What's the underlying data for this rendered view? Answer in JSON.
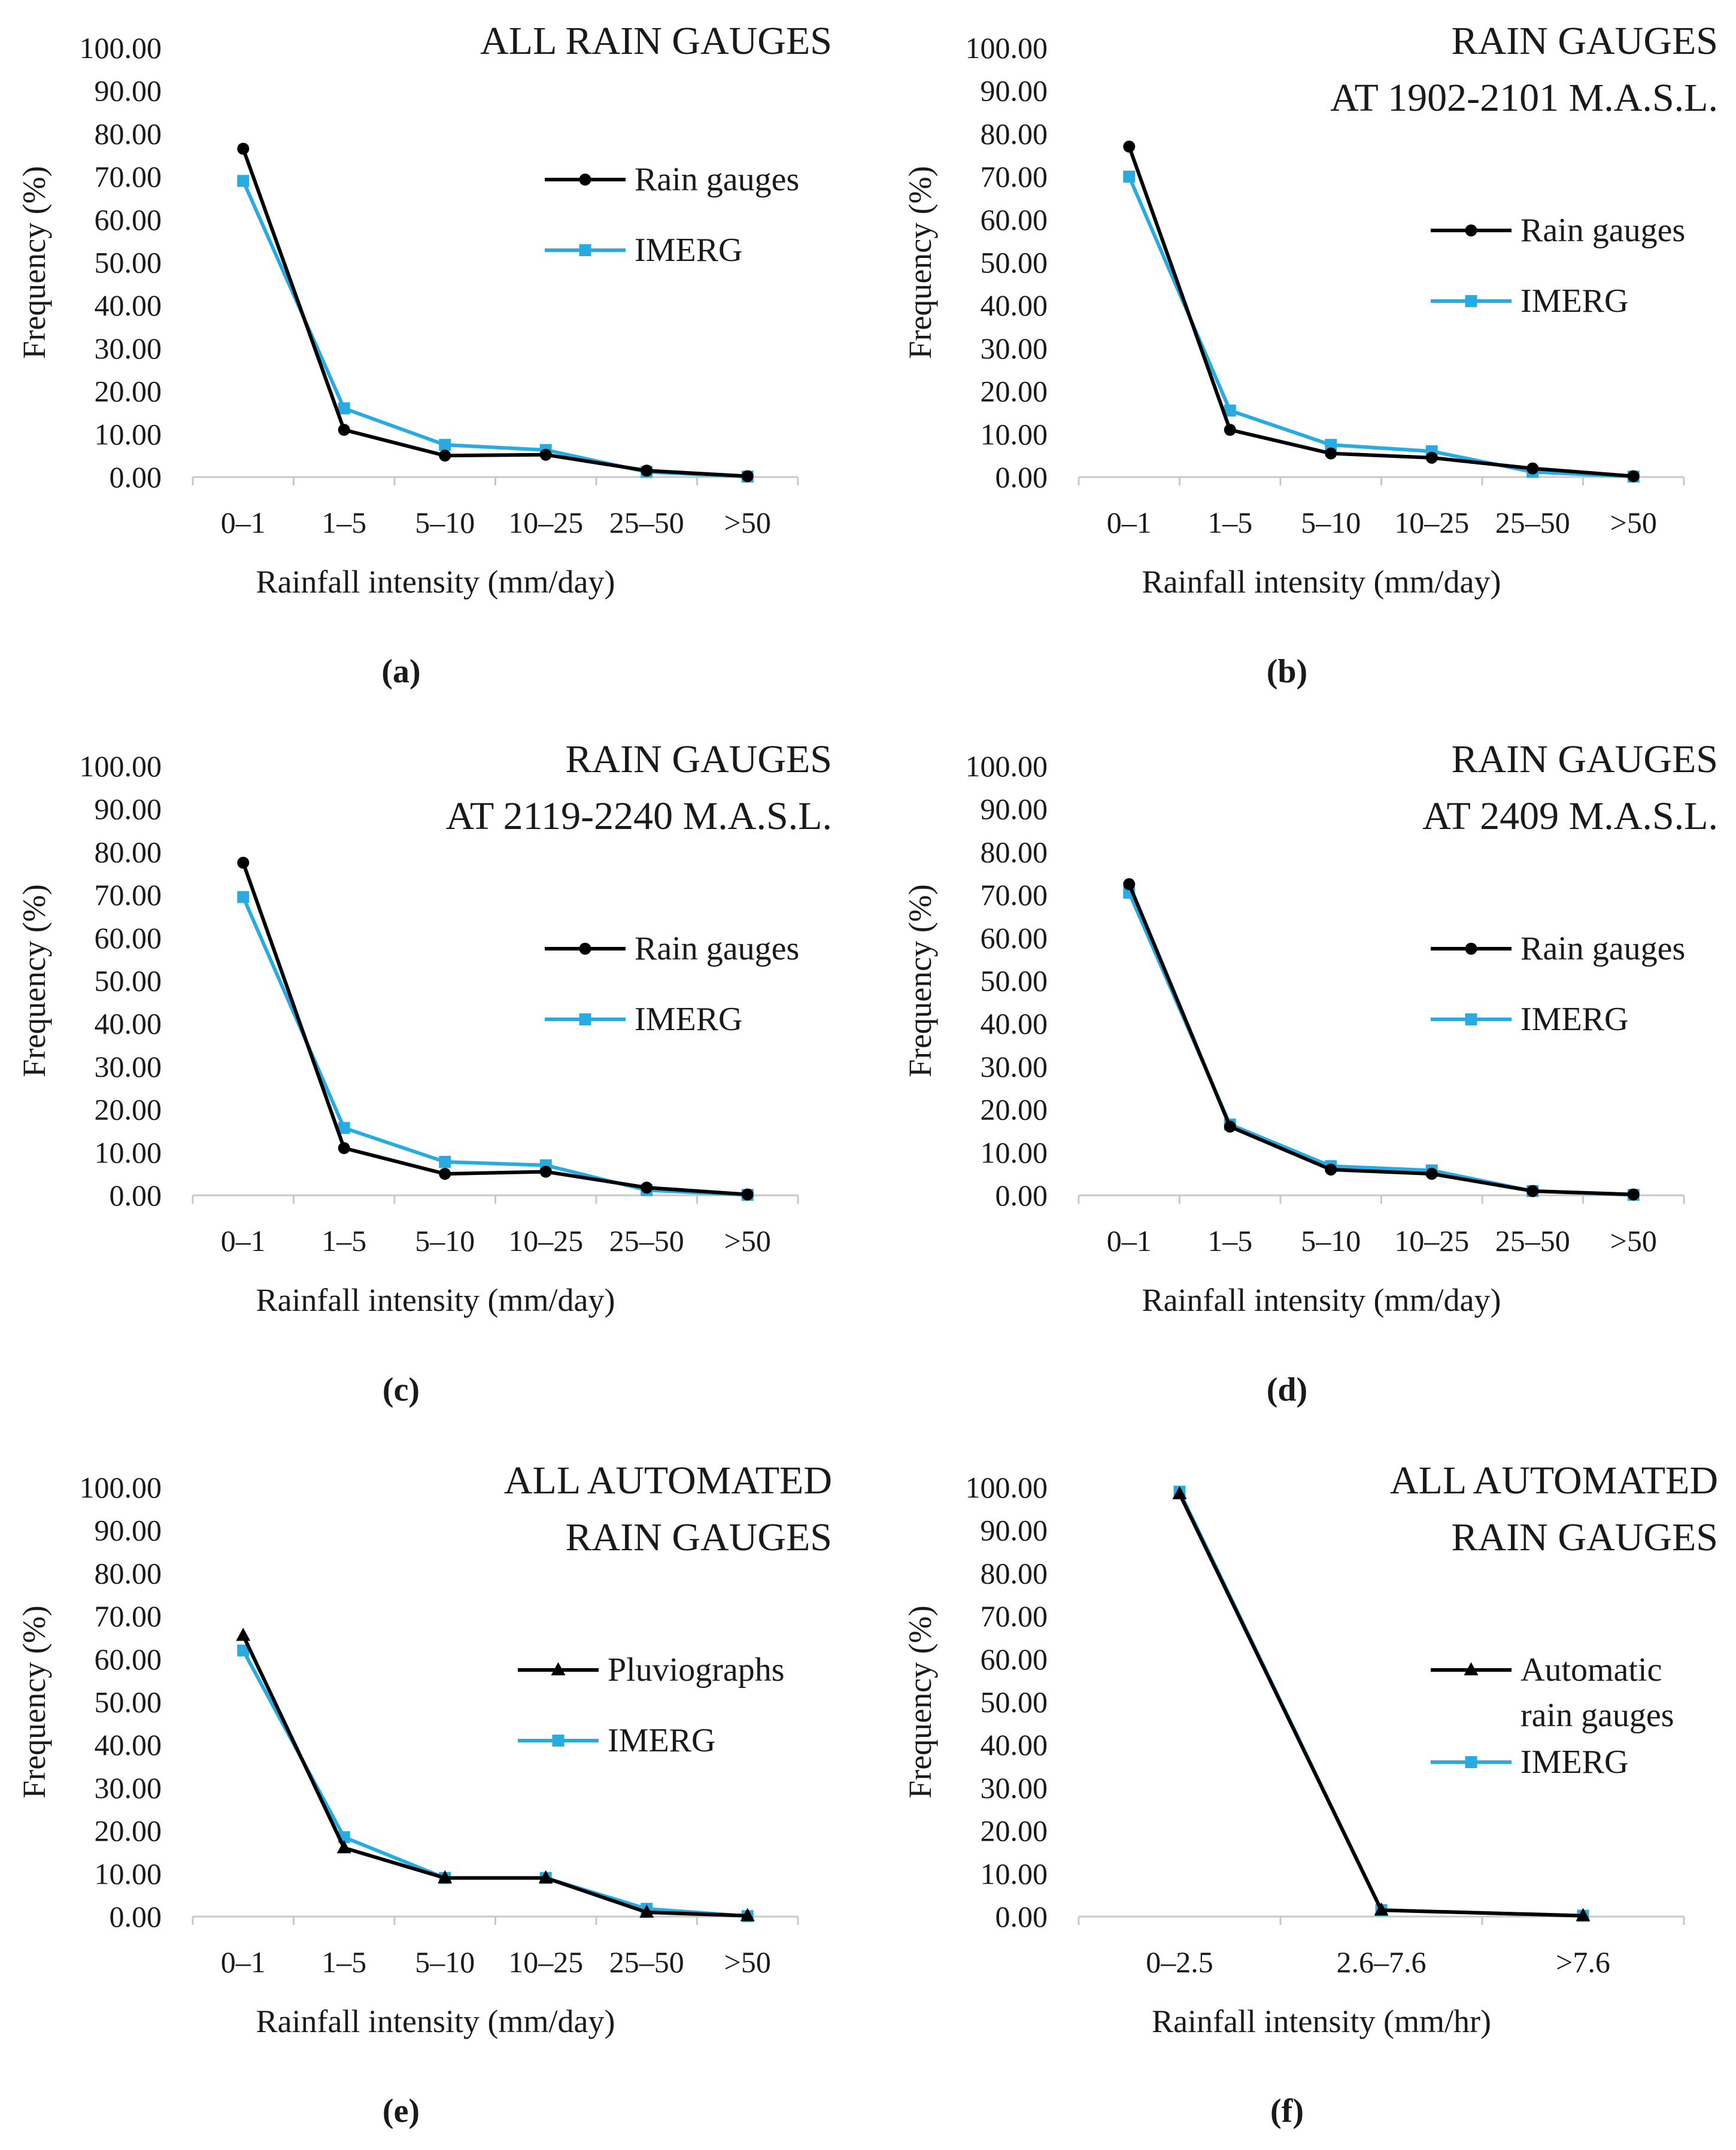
{
  "colors": {
    "rain_gauges": "#000000",
    "imerg": "#29abe2",
    "axis": "#c8c8c8",
    "text": "#1a1a1a"
  },
  "chart_data": [
    {
      "type": "line",
      "panel_label": "(a)",
      "title": [
        "ALL RAIN GAUGES"
      ],
      "xlabel": "Rainfall intensity (mm/day)",
      "ylabel": "Frequency (%)",
      "ylim": [
        0,
        100
      ],
      "yticks": [
        "0.00",
        "10.00",
        "20.00",
        "30.00",
        "40.00",
        "50.00",
        "60.00",
        "70.00",
        "80.00",
        "90.00",
        "100.00"
      ],
      "grid": false,
      "legend_position": "top-right",
      "categories": [
        "0–1",
        "1–5",
        "5–10",
        "10–25",
        "25–50",
        ">50"
      ],
      "series": [
        {
          "name": "Rain gauges",
          "marker": "circle",
          "color": "#000000",
          "values": [
            76.5,
            11.0,
            5.0,
            5.2,
            1.5,
            0.2
          ]
        },
        {
          "name": "IMERG",
          "marker": "square",
          "color": "#29abe2",
          "values": [
            69.0,
            16.0,
            7.5,
            6.3,
            1.2,
            0.1
          ]
        }
      ]
    },
    {
      "type": "line",
      "panel_label": "(b)",
      "title": [
        "RAIN GAUGES",
        "AT 1902-2101 M.A.S.L."
      ],
      "xlabel": "Rainfall intensity (mm/day)",
      "ylabel": "Frequency (%)",
      "ylim": [
        0,
        100
      ],
      "yticks": [
        "0.00",
        "10.00",
        "20.00",
        "30.00",
        "40.00",
        "50.00",
        "60.00",
        "70.00",
        "80.00",
        "90.00",
        "100.00"
      ],
      "grid": false,
      "legend_position": "top-right",
      "categories": [
        "0–1",
        "1–5",
        "5–10",
        "10–25",
        "25–50",
        ">50"
      ],
      "series": [
        {
          "name": "Rain gauges",
          "marker": "circle",
          "color": "#000000",
          "values": [
            77.0,
            11.0,
            5.5,
            4.5,
            2.0,
            0.2
          ]
        },
        {
          "name": "IMERG",
          "marker": "square",
          "color": "#29abe2",
          "values": [
            70.0,
            15.5,
            7.5,
            6.0,
            1.2,
            0.1
          ]
        }
      ]
    },
    {
      "type": "line",
      "panel_label": "(c)",
      "title": [
        "RAIN GAUGES",
        "AT 2119-2240 M.A.S.L."
      ],
      "xlabel": "Rainfall intensity (mm/day)",
      "ylabel": "Frequency (%)",
      "ylim": [
        0,
        100
      ],
      "yticks": [
        "0.00",
        "10.00",
        "20.00",
        "30.00",
        "40.00",
        "50.00",
        "60.00",
        "70.00",
        "80.00",
        "90.00",
        "100.00"
      ],
      "grid": false,
      "legend_position": "top-right",
      "categories": [
        "0–1",
        "1–5",
        "5–10",
        "10–25",
        "25–50",
        ">50"
      ],
      "series": [
        {
          "name": "Rain gauges",
          "marker": "circle",
          "color": "#000000",
          "values": [
            77.5,
            11.0,
            5.0,
            5.5,
            1.8,
            0.2
          ]
        },
        {
          "name": "IMERG",
          "marker": "square",
          "color": "#29abe2",
          "values": [
            69.5,
            15.7,
            7.8,
            7.0,
            1.2,
            0.1
          ]
        }
      ]
    },
    {
      "type": "line",
      "panel_label": "(d)",
      "title": [
        "RAIN GAUGES",
        "AT 2409 M.A.S.L."
      ],
      "xlabel": "Rainfall intensity (mm/day)",
      "ylabel": "Frequency (%)",
      "ylim": [
        0,
        100
      ],
      "yticks": [
        "0.00",
        "10.00",
        "20.00",
        "30.00",
        "40.00",
        "50.00",
        "60.00",
        "70.00",
        "80.00",
        "90.00",
        "100.00"
      ],
      "grid": false,
      "legend_position": "top-right",
      "categories": [
        "0–1",
        "1–5",
        "5–10",
        "10–25",
        "25–50",
        ">50"
      ],
      "series": [
        {
          "name": "Rain gauges",
          "marker": "circle",
          "color": "#000000",
          "values": [
            72.5,
            16.0,
            6.0,
            5.0,
            1.0,
            0.2
          ]
        },
        {
          "name": "IMERG",
          "marker": "square",
          "color": "#29abe2",
          "values": [
            70.5,
            16.5,
            6.8,
            5.8,
            1.0,
            0.1
          ]
        }
      ]
    },
    {
      "type": "line",
      "panel_label": "(e)",
      "title": [
        "ALL AUTOMATED",
        "RAIN GAUGES"
      ],
      "xlabel": "Rainfall intensity (mm/day)",
      "ylabel": "Frequency (%)",
      "ylim": [
        0,
        100
      ],
      "yticks": [
        "0.00",
        "10.00",
        "20.00",
        "30.00",
        "40.00",
        "50.00",
        "60.00",
        "70.00",
        "80.00",
        "90.00",
        "100.00"
      ],
      "grid": false,
      "legend_position": "top-right",
      "categories": [
        "0–1",
        "1–5",
        "5–10",
        "10–25",
        "25–50",
        ">50"
      ],
      "series": [
        {
          "name": "Pluviographs",
          "marker": "triangle",
          "color": "#000000",
          "values": [
            65.5,
            16.0,
            9.0,
            9.0,
            1.0,
            0.2
          ]
        },
        {
          "name": "IMERG",
          "marker": "square",
          "color": "#29abe2",
          "values": [
            62.0,
            18.5,
            9.0,
            9.0,
            1.8,
            0.1
          ]
        }
      ]
    },
    {
      "type": "line",
      "panel_label": "(f)",
      "title": [
        "ALL AUTOMATED",
        "RAIN GAUGES"
      ],
      "xlabel": "Rainfall intensity (mm/hr)",
      "ylabel": "Frequency (%)",
      "ylim": [
        0,
        100
      ],
      "yticks": [
        "0.00",
        "10.00",
        "20.00",
        "30.00",
        "40.00",
        "50.00",
        "60.00",
        "70.00",
        "80.00",
        "90.00",
        "100.00"
      ],
      "grid": false,
      "legend_position": "top-right",
      "categories": [
        "0–2.5",
        "2.6–7.6",
        ">7.6"
      ],
      "series": [
        {
          "name": "Automatic rain gauges",
          "legend_lines": [
            "Automatic",
            "rain gauges"
          ],
          "marker": "triangle",
          "color": "#000000",
          "values": [
            98.5,
            1.5,
            0.2
          ]
        },
        {
          "name": "IMERG",
          "marker": "square",
          "color": "#29abe2",
          "values": [
            99.0,
            1.5,
            0.2
          ]
        }
      ]
    }
  ]
}
